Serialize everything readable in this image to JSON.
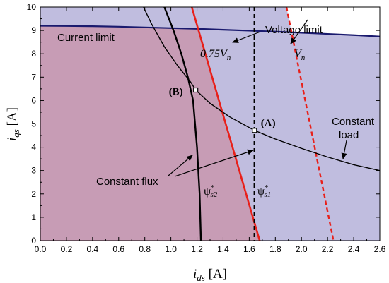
{
  "chart_data": {
    "type": "line",
    "title": "",
    "xlabel": {
      "main": "i",
      "sub": "ds",
      "unit": " [A]"
    },
    "ylabel": {
      "main": "i",
      "sub": "qs",
      "unit": " [A]"
    },
    "xlim": [
      0,
      2.6
    ],
    "ylim": [
      0,
      10
    ],
    "x_ticks": [
      0.0,
      0.2,
      0.4,
      0.6,
      0.8,
      1.0,
      1.2,
      1.4,
      1.6,
      1.8,
      2.0,
      2.2,
      2.4,
      2.6
    ],
    "x_tick_labels": [
      "0.0",
      "0.2",
      "0.4",
      "0.6",
      "0.8",
      "1.0",
      "1.2",
      "1.4",
      "1.6",
      "1.8",
      "2.0",
      "2.2",
      "2.4",
      "2.6"
    ],
    "y_ticks": [
      0,
      1,
      2,
      3,
      4,
      5,
      6,
      7,
      8,
      9,
      10
    ],
    "y_tick_labels": [
      "0",
      "1",
      "2",
      "3",
      "4",
      "5",
      "6",
      "7",
      "8",
      "9",
      "10"
    ],
    "grid": false,
    "colors": {
      "region_current_limit": "#f2b8b0",
      "region_voltage_limit": "#c0bddf",
      "region_overlap": "#c79cb5",
      "current_limit_line": "#1a1a6e",
      "voltage_limit_line": "#e8201a",
      "flux_line": "#000000",
      "load_curve": "#000000"
    },
    "series": [
      {
        "id": "current-limit",
        "x": [
          0,
          0.2,
          0.4,
          0.6,
          0.8,
          1.0,
          1.2,
          1.4,
          1.6,
          1.8,
          2.0,
          2.2,
          2.4,
          2.6
        ],
        "y": [
          9.2,
          9.19,
          9.18,
          9.16,
          9.13,
          9.1,
          9.07,
          9.03,
          8.99,
          8.95,
          8.9,
          8.85,
          8.8,
          8.74
        ]
      },
      {
        "id": "voltage-limit-0.75",
        "x": [
          1.16,
          1.68
        ],
        "y": [
          10,
          0
        ]
      },
      {
        "id": "voltage-limit-vn",
        "x": [
          1.885,
          2.245
        ],
        "y": [
          10,
          0
        ]
      },
      {
        "id": "flux-s2",
        "x": [
          0.95,
          1.02,
          1.08,
          1.13,
          1.17,
          1.2,
          1.22,
          1.23
        ],
        "y": [
          10,
          9,
          8,
          7,
          6,
          4,
          2,
          0
        ]
      },
      {
        "id": "flux-s1",
        "x": [
          1.64,
          1.64
        ],
        "y": [
          10,
          0
        ]
      },
      {
        "id": "constant-load",
        "x": [
          0.79,
          0.85,
          0.95,
          1.05,
          1.15,
          1.19,
          1.3,
          1.45,
          1.64,
          1.8,
          2.0,
          2.2,
          2.4,
          2.6
        ],
        "y": [
          10,
          9.3,
          8.3,
          7.5,
          6.8,
          6.45,
          5.88,
          5.3,
          4.72,
          4.35,
          3.95,
          3.58,
          3.25,
          3.0
        ]
      }
    ],
    "points": [
      {
        "label": "(B)",
        "x": 1.19,
        "y": 6.45
      },
      {
        "label": "(A)",
        "x": 1.64,
        "y": 4.72
      }
    ],
    "annotations": {
      "current_limit": "Current limit",
      "voltage_limit": "Voltage limit",
      "v075": "0.75V",
      "v075_sub": "n",
      "vn": "V",
      "vn_sub": "n",
      "constant_load_1": "Constant",
      "constant_load_2": "load",
      "constant_flux": "Constant flux",
      "psi": "ψ",
      "psi_s2_sub": "s2",
      "psi_s1_sub": "s1",
      "star": "*"
    }
  }
}
